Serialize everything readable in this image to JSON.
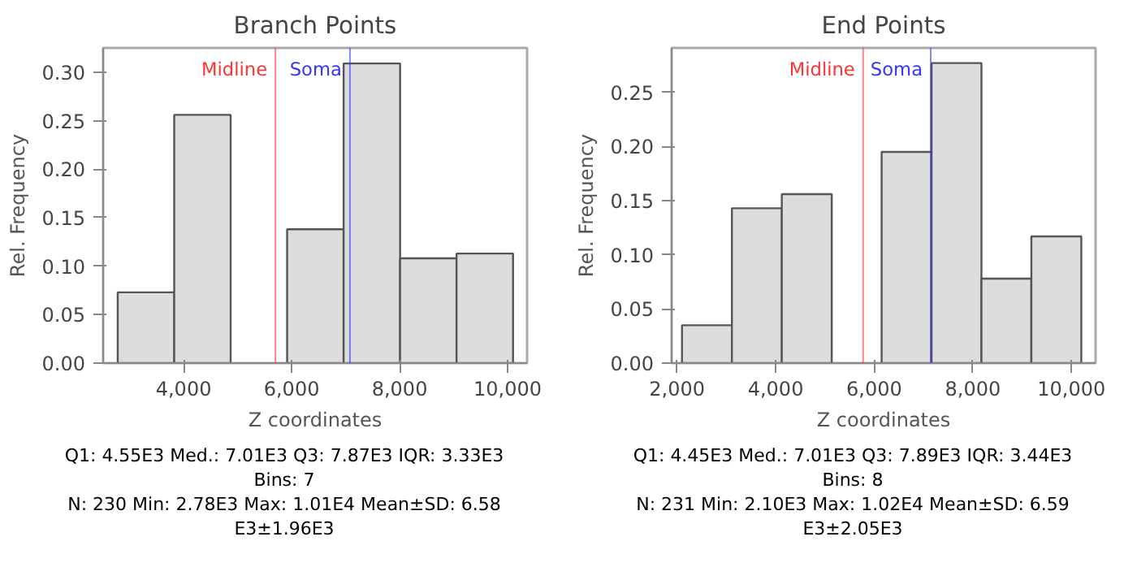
{
  "chart_data": [
    {
      "type": "histogram",
      "title": "Branch Points",
      "xlabel": "Z coordinates",
      "ylabel": "Rel. Frequency",
      "bins": [
        2780,
        3826,
        4871,
        5917,
        6963,
        8009,
        9054,
        10100
      ],
      "values": [
        0.073,
        0.256,
        0,
        0.138,
        0.309,
        0.108,
        0.113
      ],
      "color": "#dddddd",
      "xlim": [
        2510,
        10360
      ],
      "ylim": [
        0,
        0.325
      ],
      "xticks": [
        {
          "value": 4000,
          "label": "4,000"
        },
        {
          "value": 6000,
          "label": "6,000"
        },
        {
          "value": 8000,
          "label": "8,000"
        },
        {
          "value": 10000,
          "label": "10,000"
        }
      ],
      "yticks": [
        {
          "value": 0,
          "label": "0.00"
        },
        {
          "value": 0.05,
          "label": "0.05"
        },
        {
          "value": 0.1,
          "label": "0.10"
        },
        {
          "value": 0.15,
          "label": "0.15"
        },
        {
          "value": 0.2,
          "label": "0.20"
        },
        {
          "value": 0.25,
          "label": "0.25"
        },
        {
          "value": 0.3,
          "label": "0.30"
        }
      ],
      "ref_lines": [
        {
          "axis": "x",
          "value": 5700,
          "label": "Midline",
          "color": "#ff3333"
        },
        {
          "axis": "x",
          "value": 7080,
          "label": "Soma",
          "color": "#3333ff"
        }
      ],
      "annotations": [
        "Q1: 4.55E3 Med.: 7.01E3 Q3: 7.87E3 IQR: 3.33E3",
        "Bins: 7",
        "N: 230 Min: 2.78E3 Max: 1.01E4 Mean±SD: 6.58 E3±1.96E3"
      ]
    },
    {
      "type": "histogram",
      "title": "End Points",
      "xlabel": "Z coordinates",
      "ylabel": "Rel. Frequency",
      "bins": [
        2100,
        3112.5,
        4125,
        5137.5,
        6150,
        7162.5,
        8175,
        9187.5,
        10200
      ],
      "values": [
        0.035,
        0.143,
        0.156,
        0,
        0.195,
        0.277,
        0.078,
        0.117
      ],
      "color": "#dddddd",
      "xlim": [
        1890,
        10490
      ],
      "ylim": [
        0,
        0.291
      ],
      "xticks": [
        {
          "value": 2000,
          "label": "2,000"
        },
        {
          "value": 4000,
          "label": "4,000"
        },
        {
          "value": 6000,
          "label": "6,000"
        },
        {
          "value": 8000,
          "label": "8,000"
        },
        {
          "value": 10000,
          "label": "10,000"
        }
      ],
      "yticks": [
        {
          "value": 0,
          "label": "0.00"
        },
        {
          "value": 0.05,
          "label": "0.05"
        },
        {
          "value": 0.1,
          "label": "0.10"
        },
        {
          "value": 0.15,
          "label": "0.15"
        },
        {
          "value": 0.2,
          "label": "0.20"
        },
        {
          "value": 0.25,
          "label": "0.25"
        }
      ],
      "ref_lines": [
        {
          "axis": "x",
          "value": 5775,
          "label": "Midline",
          "color": "#ff3333"
        },
        {
          "axis": "x",
          "value": 7146,
          "label": "Soma",
          "color": "#3333ff"
        }
      ],
      "annotations": [
        "Q1: 4.45E3 Med.: 7.01E3 Q3: 7.89E3 IQR: 3.44E3",
        "Bins: 8",
        "N: 231 Min: 2.10E3 Max: 1.02E4 Mean±SD: 6.59 E3±2.05E3"
      ]
    }
  ]
}
